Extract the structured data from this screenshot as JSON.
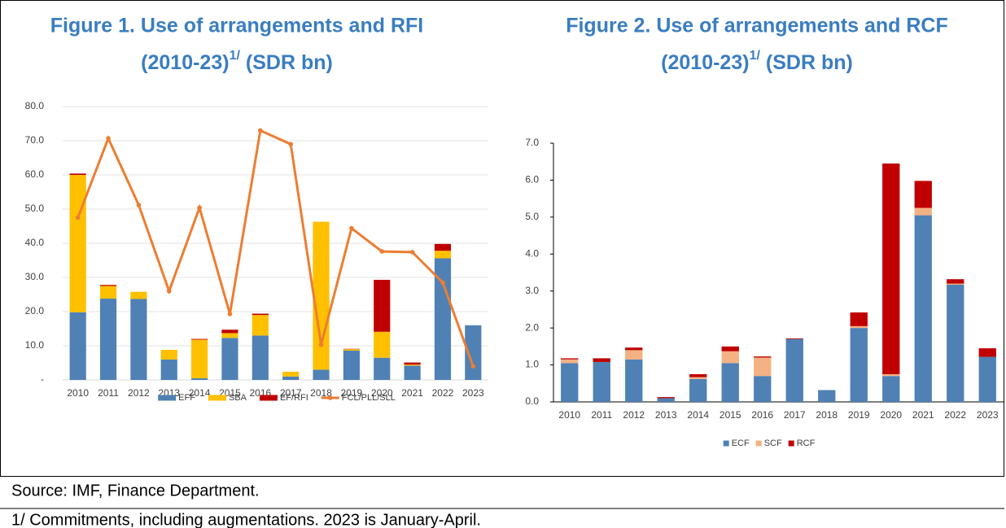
{
  "chart_data": [
    {
      "type": "bar",
      "title_line1": "Figure 1. Use of arrangements and RFI",
      "title_line2": "(2010-23)",
      "title_sup": "1/",
      "title_unit": "(SDR bn)",
      "categories": [
        "2010",
        "2011",
        "2012",
        "2013",
        "2014",
        "2015",
        "2016",
        "2017",
        "2018",
        "2019",
        "2020",
        "2021",
        "2022",
        "2023"
      ],
      "series": [
        {
          "name": "EFF",
          "color": "#4f81b5",
          "values": [
            19.8,
            23.8,
            23.7,
            6,
            0.5,
            12.3,
            13,
            1,
            3,
            8.6,
            6.5,
            4.2,
            35.6,
            16
          ]
        },
        {
          "name": "SBA",
          "color": "#ffc000",
          "values": [
            40.2,
            3.7,
            2.1,
            2.8,
            11.3,
            1.4,
            6,
            1.4,
            43.3,
            0.4,
            7.6,
            0.3,
            2.2,
            0
          ]
        },
        {
          "name": "EF/RFI",
          "color": "#c00000",
          "values": [
            0.4,
            0.3,
            0,
            0,
            0.2,
            1,
            0.4,
            0,
            0,
            0.1,
            15.2,
            0.6,
            2,
            0
          ]
        },
        {
          "name": "FCL/PLL/SLL",
          "color": "#ed7d31",
          "type": "line",
          "values": [
            47.5,
            70.7,
            51.2,
            26,
            50.4,
            19.3,
            73,
            69,
            10.3,
            44.4,
            37.6,
            37.4,
            28.5,
            4
          ]
        }
      ],
      "ylim": [
        0,
        80
      ],
      "yticks": [
        {
          "value": 0,
          "label": "-"
        },
        {
          "value": 10,
          "label": "10.0"
        },
        {
          "value": 20,
          "label": "20.0"
        },
        {
          "value": 30,
          "label": "30.0"
        },
        {
          "value": 40,
          "label": "40.0"
        },
        {
          "value": 50,
          "label": "50.0"
        },
        {
          "value": 60,
          "label": "60.0"
        },
        {
          "value": 70,
          "label": "70.0"
        },
        {
          "value": 80,
          "label": "80.0"
        }
      ],
      "grid": true
    },
    {
      "type": "bar",
      "title_line1": "Figure 2. Use of arrangements and RCF",
      "title_line2": "(2010-23)",
      "title_sup": "1/",
      "title_unit": "(SDR bn)",
      "categories": [
        "2010",
        "2011",
        "2012",
        "2013",
        "2014",
        "2015",
        "2016",
        "2017",
        "2018",
        "2019",
        "2020",
        "2021",
        "2022",
        "2023"
      ],
      "series": [
        {
          "name": "ECF",
          "color": "#4f81b5",
          "values": [
            1.05,
            1.08,
            1.15,
            0.1,
            0.62,
            1.05,
            0.7,
            1.7,
            0.32,
            2,
            0.7,
            5.05,
            3.17,
            1.22
          ]
        },
        {
          "name": "SCF",
          "color": "#f4b183",
          "values": [
            0.1,
            0,
            0.25,
            0,
            0.05,
            0.32,
            0.5,
            0,
            0,
            0.05,
            0.05,
            0.2,
            0.03,
            0
          ]
        },
        {
          "name": "RCF",
          "color": "#c00000",
          "values": [
            0.03,
            0.1,
            0.07,
            0.03,
            0.08,
            0.13,
            0.03,
            0.02,
            0,
            0.37,
            5.7,
            0.73,
            0.12,
            0.23
          ]
        }
      ],
      "ylim": [
        0,
        7
      ],
      "yticks": [
        {
          "value": 0,
          "label": "0.0"
        },
        {
          "value": 1,
          "label": "1.0"
        },
        {
          "value": 2,
          "label": "2.0"
        },
        {
          "value": 3,
          "label": "3.0"
        },
        {
          "value": 4,
          "label": "4.0"
        },
        {
          "value": 5,
          "label": "5.0"
        },
        {
          "value": 6,
          "label": "6.0"
        },
        {
          "value": 7,
          "label": "7.0"
        }
      ],
      "grid": false
    }
  ],
  "source": "Source: IMF, Finance Department.",
  "note": "1/ Commitments, including augmentations. 2023 is January-April."
}
